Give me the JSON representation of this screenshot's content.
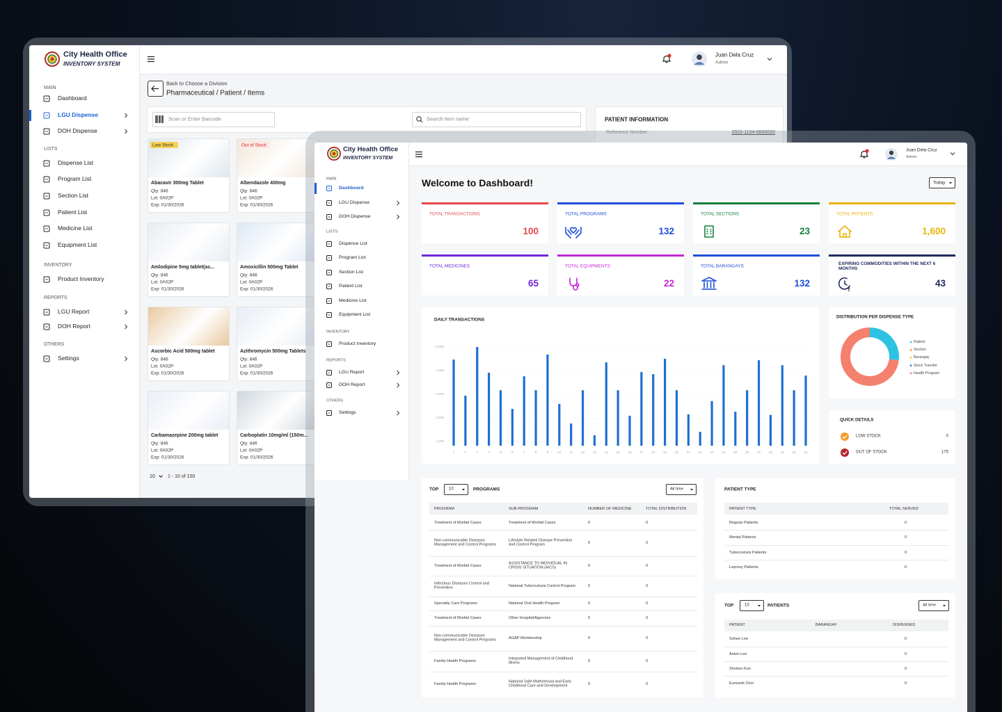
{
  "back_window": {
    "brand": {
      "name": "City Health Office",
      "subtitle": "INVENTORY SYSTEM"
    },
    "user": {
      "name": "Juan Dela Cruz",
      "role": "Admin"
    },
    "sidebar": [
      {
        "heading": "MAIN",
        "items": [
          "Dashboard",
          "LGU Dispense",
          "DOH Dispense"
        ]
      },
      {
        "heading": "LISTS",
        "items": [
          "Dispense List",
          "Program List",
          "Section List",
          "Patient List",
          "Medicine List",
          "Equipment List"
        ]
      },
      {
        "heading": "INVENTORY",
        "items": [
          "Product Inventory"
        ]
      },
      {
        "heading": "REPORTS",
        "items": [
          "LGU Report",
          "DOH Report"
        ]
      },
      {
        "heading": "OTHERS",
        "items": [
          "Settings"
        ]
      }
    ],
    "back_link": "Back to Choose a Division",
    "breadcrumb": "Pharmaceutical / Patient / Items",
    "barcode_placeholder": "Scan or Enter Barcode",
    "search_placeholder": "Search item name",
    "products": [
      {
        "badge": "Low Stock",
        "name": "Abacavir 300mg Tablet",
        "qty": "Qty: 846",
        "lot": "Lot: 0A02P",
        "exp": "Exp: 01/30/2026"
      },
      {
        "badge": "Out of Stock",
        "name": "Albendazole 400mg",
        "qty": "Qty: 846",
        "lot": "Lot: 0A02P",
        "exp": "Exp: 01/30/2026"
      },
      {
        "name": "Amlodipine 5mg tablet(as...",
        "qty": "Qty: 846",
        "lot": "Lot: 0A02P",
        "exp": "Exp: 01/30/2026"
      },
      {
        "name": "Amoxicillin 500mg Tablet",
        "qty": "Qty: 846",
        "lot": "Lot: 0A02P",
        "exp": "Exp: 01/30/2026"
      },
      {
        "name": "Ascorbic Acid 500mg tablet",
        "qty": "Qty: 846",
        "lot": "Lot: 0A02P",
        "exp": "Exp: 01/30/2026"
      },
      {
        "name": "Azithromycin 500mg Tablets",
        "qty": "Qty: 846",
        "lot": "Lot: 0A02P",
        "exp": "Exp: 01/30/2026"
      },
      {
        "name": "Carbamazepine 200mg tablet",
        "qty": "Qty: 846",
        "lot": "Lot: 0A02P",
        "exp": "Exp: 01/30/2026"
      },
      {
        "name": "Carboplatin 10mg/ml (150m...",
        "qty": "Qty: 846",
        "lot": "Lot: 0A02P",
        "exp": "Exp: 01/30/2026"
      }
    ],
    "pagination": {
      "per_page": "10",
      "range": "1 - 10 of 100"
    },
    "patient_info": {
      "title": "PATIENT INFORMATION",
      "label": "Reference Number:",
      "value": "2022-1104-0000020"
    }
  },
  "front_window": {
    "brand": {
      "name": "City Health Office",
      "subtitle": "INVENTORY SYSTEM"
    },
    "user": {
      "name": "Juan Dela Cruz",
      "role": "Admin"
    },
    "sidebar": [
      {
        "heading": "MAIN",
        "items": [
          "Dashboard",
          "LGU Dispense",
          "DOH Dispense"
        ]
      },
      {
        "heading": "LISTS",
        "items": [
          "Dispense List",
          "Program List",
          "Section List",
          "Patient List",
          "Medicine List",
          "Equipment List"
        ]
      },
      {
        "heading": "INVENTORY",
        "items": [
          "Product Inventory"
        ]
      },
      {
        "heading": "REPORTS",
        "items": [
          "LGU Report",
          "DOH Report"
        ]
      },
      {
        "heading": "OTHERS",
        "items": [
          "Settings"
        ]
      }
    ],
    "title": "Welcome to Dashboard!",
    "period": "Today",
    "stats": [
      {
        "label": "TOTAL TRANSACTIONS",
        "value": "100"
      },
      {
        "label": "TOTAL PROGRAMS",
        "value": "132"
      },
      {
        "label": "TOTAL SECTIONS",
        "value": "23"
      },
      {
        "label": "TOTAL PATIENTS",
        "value": "1,600"
      },
      {
        "label": "TOTAL MEDICINES",
        "value": "65"
      },
      {
        "label": "TOTAL EQUIPMENTS",
        "value": "22"
      },
      {
        "label": "TOTAL BARANGAYS",
        "value": "132"
      },
      {
        "label": "EXPIRING COMMODITIES WITHIN THE NEXT 6 MONTHS",
        "value": "43"
      }
    ],
    "daily_chart": {
      "type": "bar",
      "title": "DAILY TRANSACTIONS",
      "categories": [
        1,
        2,
        3,
        4,
        5,
        6,
        7,
        8,
        9,
        10,
        11,
        12,
        13,
        14,
        15,
        16,
        17,
        18,
        19,
        20,
        21,
        22,
        23,
        24,
        25,
        26,
        27,
        28,
        29,
        30,
        31
      ],
      "values": [
        4500,
        2970,
        5030,
        3940,
        3200,
        2410,
        3790,
        3200,
        4710,
        2620,
        1790,
        3200,
        1290,
        4380,
        3200,
        2120,
        3970,
        3880,
        4530,
        3200,
        2180,
        1440,
        2740,
        4260,
        2290,
        3200,
        4470,
        2150,
        4260,
        3200,
        3820
      ],
      "color": "#1f6fd1",
      "ylim": [
        850,
        5150
      ],
      "yticks": [
        {
          "value": 1000,
          "label": "1,000"
        },
        {
          "value": 2000,
          "label": "2,000"
        },
        {
          "value": 3000,
          "label": "3,000"
        },
        {
          "value": 4000,
          "label": "4,000"
        },
        {
          "value": 5000,
          "label": "5,000"
        }
      ]
    },
    "dispense_chart": {
      "type": "donut",
      "title": "DISTRIBUTION PER DISPENSE TYPE",
      "series": [
        {
          "name": "Patient",
          "color": "#2cc3e3",
          "value": 27
        },
        {
          "name": "Section",
          "color": "#f5a623",
          "value": 0
        },
        {
          "name": "Barangay",
          "color": "#f2d024",
          "value": 0
        },
        {
          "name": "Stock Transfer",
          "color": "#4b6fd8",
          "value": 0
        },
        {
          "name": "Health Program",
          "color": "#f4806e",
          "value": 73
        }
      ]
    },
    "quick_details": {
      "title": "QUICK DETAILS",
      "rows": [
        {
          "label": "LOW STOCK",
          "value": "0"
        },
        {
          "label": "OUT OF STOCK",
          "value": "175"
        }
      ]
    },
    "programs": {
      "top": "TOP",
      "limit": "10",
      "title": "PROGRAMS",
      "range": "All time",
      "columns": [
        "PROGRAM",
        "SUB-PROGRAM",
        "NUMBER OF MEDICINE",
        "TOTAL DISTRIBUTION"
      ],
      "rows": [
        [
          "Treatment of Morbid Cases",
          "Treatment of Morbid Cases",
          0,
          0
        ],
        [
          "Non-communicable Diseases Management and Control Programs",
          "Lifestyle Related Disease Prevention and Control Program",
          0,
          0
        ],
        [
          "Treatment of Morbid Cases",
          "ASSISTANCE TO INDIVIDUAL IN CRISIS SITUATION (AICS)",
          0,
          0
        ],
        [
          "Infectious Diseases Control and Prevention",
          "National Tuberculosis Control Program",
          0,
          0
        ],
        [
          "Specialty Care Programs",
          "National Oral Health Program",
          0,
          0
        ],
        [
          "Treatment of Morbid Cases",
          "Other Hospital/Agencies",
          0,
          0
        ],
        [
          "Non-communicable Diseases Management and Control Programs",
          "AGAP Membership",
          0,
          0
        ],
        [
          "Family Health Programs",
          "Integrated Management of Childhood Illness",
          0,
          0
        ],
        [
          "Family Health Programs",
          "National Safe Motherhood and Early Childhood Care and Development",
          0,
          0
        ]
      ]
    },
    "patient_type": {
      "title": "PATIENT TYPE",
      "columns": [
        "PATIENT TYPE",
        "TOTAL SERVED"
      ],
      "rows": [
        [
          "Regular Patients",
          0
        ],
        [
          "Mental Patients",
          0
        ],
        [
          "Tuberculosis Patients",
          0
        ],
        [
          "Leprosy Patients",
          0
        ]
      ]
    },
    "top_patients": {
      "top": "TOP",
      "limit": "10",
      "title": "PATIENTS",
      "range": "All time",
      "columns": [
        "PATIENT",
        "BARANGAY",
        "DISPENSED"
      ],
      "rows": [
        {
          "patient": "Sohee Lee",
          "dispensed": 0
        },
        {
          "patient": "Anton Lee",
          "dispensed": 0
        },
        {
          "patient": "Shotaro Kun",
          "dispensed": 0
        },
        {
          "patient": "Eunseok Choi",
          "dispensed": 0
        }
      ]
    }
  }
}
